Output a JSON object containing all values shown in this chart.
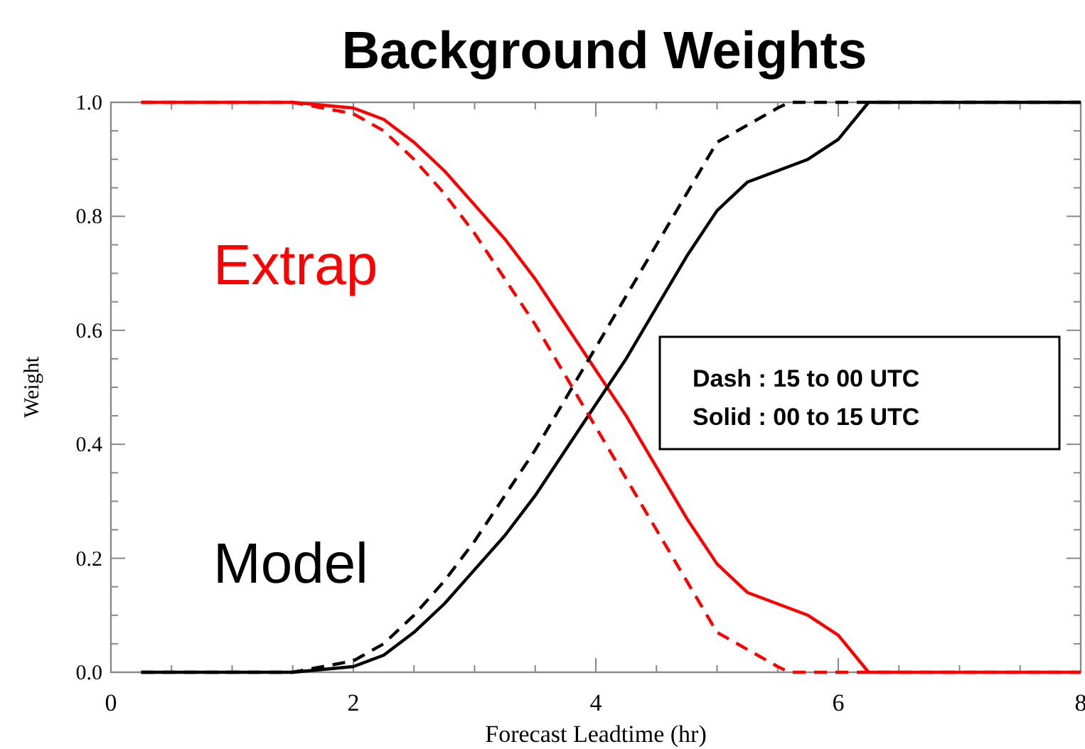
{
  "chart_data": {
    "type": "line",
    "title": "Background Weights",
    "xlabel": "Forecast Leadtime (hr)",
    "ylabel": "Weight",
    "xlim": [
      0,
      8
    ],
    "ylim": [
      0,
      1
    ],
    "xticks": [
      0,
      {
        "value": 0.5,
        "label": null
      },
      {
        "value": 1,
        "label": null
      },
      {
        "value": 1.5,
        "label": null
      },
      2,
      {
        "value": 2.5,
        "label": null
      },
      {
        "value": 3,
        "label": null
      },
      {
        "value": 3.5,
        "label": null
      },
      4,
      {
        "value": 4.5,
        "label": null
      },
      {
        "value": 5,
        "label": null
      },
      {
        "value": 5.5,
        "label": null
      },
      6,
      {
        "value": 6.5,
        "label": null
      },
      {
        "value": 7,
        "label": null
      },
      {
        "value": 7.5,
        "label": null
      },
      8
    ],
    "yticks": [
      {
        "value": 0,
        "label": "0.0"
      },
      {
        "value": 0.05,
        "label": null
      },
      {
        "value": 0.1,
        "label": null
      },
      {
        "value": 0.15,
        "label": null
      },
      {
        "value": 0.2,
        "label": "0.2"
      },
      {
        "value": 0.25,
        "label": null
      },
      {
        "value": 0.3,
        "label": null
      },
      {
        "value": 0.35,
        "label": null
      },
      {
        "value": 0.4,
        "label": "0.4"
      },
      {
        "value": 0.45,
        "label": null
      },
      {
        "value": 0.5,
        "label": null
      },
      {
        "value": 0.55,
        "label": null
      },
      {
        "value": 0.6,
        "label": "0.6"
      },
      {
        "value": 0.65,
        "label": null
      },
      {
        "value": 0.7,
        "label": null
      },
      {
        "value": 0.75,
        "label": null
      },
      {
        "value": 0.8,
        "label": "0.8"
      },
      {
        "value": 0.85,
        "label": null
      },
      {
        "value": 0.9,
        "label": null
      },
      {
        "value": 0.95,
        "label": null
      },
      {
        "value": 1,
        "label": "1.0"
      }
    ],
    "grid": false,
    "marker": "none",
    "annotations": [
      "Dash : 15 to 00 UTC",
      "Solid : 00 to 15 UTC"
    ],
    "series": [
      {
        "name": "Extrap",
        "color": "#ff0000",
        "line_style": "solid",
        "x": [
          0.25,
          1,
          1.5,
          1.75,
          2,
          2.25,
          2.5,
          2.75,
          3,
          3.25,
          3.5,
          3.75,
          4,
          4.25,
          4.5,
          4.75,
          5,
          5.25,
          5.75,
          6,
          6.25,
          7,
          8
        ],
        "values": [
          1,
          1,
          1,
          0.995,
          0.99,
          0.97,
          0.93,
          0.88,
          0.82,
          0.76,
          0.69,
          0.61,
          0.53,
          0.45,
          0.36,
          0.27,
          0.19,
          0.14,
          0.1,
          0.065,
          0,
          0,
          0
        ]
      },
      {
        "name": "Model",
        "color": "#000000",
        "line_style": "solid",
        "x": [
          0.25,
          1,
          1.5,
          1.75,
          2,
          2.25,
          2.5,
          2.75,
          3,
          3.25,
          3.5,
          3.75,
          4,
          4.25,
          4.5,
          4.75,
          5,
          5.25,
          5.75,
          6,
          6.25,
          7,
          8
        ],
        "values": [
          0,
          0,
          0,
          0.005,
          0.01,
          0.03,
          0.07,
          0.12,
          0.18,
          0.24,
          0.31,
          0.39,
          0.47,
          0.55,
          0.64,
          0.73,
          0.81,
          0.86,
          0.9,
          0.935,
          1,
          1,
          1
        ]
      },
      {
        "color": "#ff0000",
        "line_style": "dashed",
        "x": [
          0.25,
          1,
          1.5,
          1.75,
          2,
          2.25,
          2.5,
          2.75,
          3,
          3.25,
          3.5,
          3.75,
          4,
          4.25,
          4.5,
          4.75,
          5,
          5.25,
          5.5,
          5.6,
          6,
          7,
          8
        ],
        "values": [
          1,
          1,
          1,
          0.99,
          0.98,
          0.95,
          0.9,
          0.84,
          0.77,
          0.69,
          0.61,
          0.52,
          0.43,
          0.34,
          0.25,
          0.16,
          0.07,
          0.04,
          0.01,
          0,
          0,
          0,
          0
        ]
      },
      {
        "color": "#000000",
        "line_style": "dashed",
        "x": [
          0.25,
          1,
          1.5,
          1.75,
          2,
          2.25,
          2.5,
          2.75,
          3,
          3.25,
          3.5,
          3.75,
          4,
          4.25,
          4.5,
          4.75,
          5,
          5.25,
          5.5,
          5.6,
          6,
          7,
          8
        ],
        "values": [
          0,
          0,
          0,
          0.01,
          0.02,
          0.05,
          0.1,
          0.16,
          0.23,
          0.31,
          0.39,
          0.48,
          0.57,
          0.66,
          0.75,
          0.84,
          0.93,
          0.96,
          0.99,
          1,
          1,
          1,
          1
        ]
      }
    ]
  }
}
